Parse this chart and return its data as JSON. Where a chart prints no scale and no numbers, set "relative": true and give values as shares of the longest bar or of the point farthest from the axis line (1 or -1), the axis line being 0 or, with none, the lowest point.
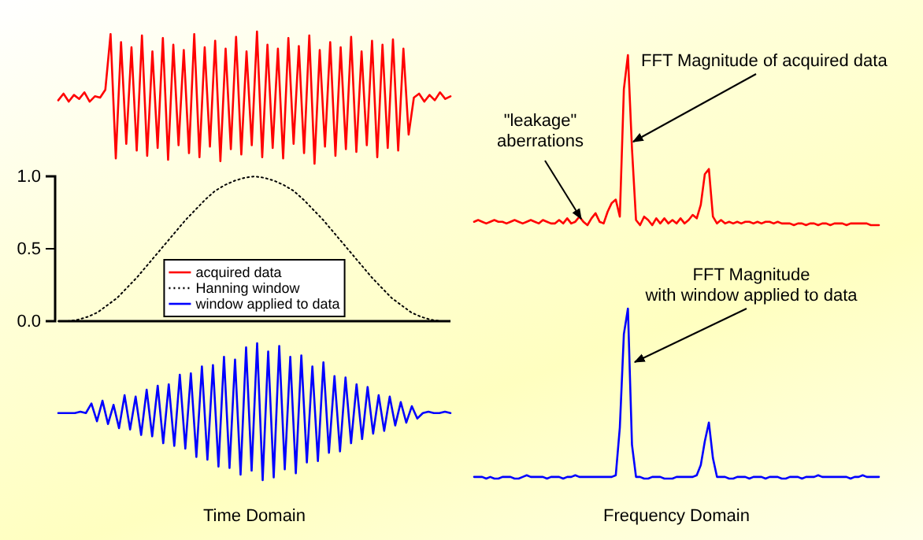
{
  "chart_data": [
    {
      "type": "line",
      "relative": true,
      "categories": [
        null,
        null,
        null,
        null,
        null,
        null,
        null,
        null,
        null,
        null,
        null,
        null,
        null,
        null,
        null,
        null,
        null,
        null,
        null,
        null,
        null,
        null,
        null,
        null,
        null,
        null,
        null,
        null,
        null,
        null,
        null,
        null,
        null,
        null,
        null,
        null,
        null,
        null,
        null,
        null,
        null,
        null,
        null,
        null,
        null,
        null,
        null,
        null,
        null,
        null,
        null,
        null,
        null,
        null,
        null,
        null,
        null,
        null,
        null,
        null,
        null,
        null,
        null,
        null,
        null,
        null,
        null,
        null,
        null,
        null,
        null,
        null,
        null,
        null,
        null,
        null
      ],
      "series": [
        {
          "name": "acquired data",
          "color": "#ff0000",
          "values": [
            0.48,
            0.53,
            0.47,
            0.52,
            0.49,
            0.54,
            0.47,
            0.51,
            0.5,
            0.56,
            0.98,
            0.04,
            0.92,
            0.15,
            0.88,
            0.1,
            0.97,
            0.06,
            0.85,
            0.12,
            0.95,
            0.03,
            0.9,
            0.14,
            0.86,
            0.08,
            0.98,
            0.05,
            0.88,
            0.13,
            0.93,
            0.02,
            0.87,
            0.11,
            0.96,
            0.07,
            0.85,
            0.14,
            1.0,
            0.05,
            0.9,
            0.12,
            0.87,
            0.04,
            0.95,
            0.15,
            0.89,
            0.08,
            0.97,
            0.0,
            0.86,
            0.13,
            0.92,
            0.06,
            0.88,
            0.11,
            0.96,
            0.09,
            0.85,
            0.14,
            0.93,
            0.05,
            0.9,
            0.12,
            0.94,
            0.1,
            0.87,
            0.22,
            0.5,
            0.53,
            0.47,
            0.52,
            0.48,
            0.54,
            0.49,
            0.51
          ]
        }
      ]
    },
    {
      "type": "line",
      "categories": [
        null,
        null,
        null,
        null,
        null,
        null,
        null,
        null,
        null,
        null,
        null,
        null,
        null,
        null,
        null,
        null,
        null,
        null,
        null,
        null,
        null,
        null,
        null,
        null,
        null,
        null,
        null,
        null,
        null,
        null,
        null,
        null,
        null,
        null,
        null,
        null,
        null,
        null,
        null,
        null,
        null
      ],
      "ylim": [
        0,
        1
      ],
      "yticks": [
        {
          "value": 0,
          "label": "0.0"
        },
        {
          "value": 0.5,
          "label": "0.5"
        },
        {
          "value": 1,
          "label": "1.0"
        }
      ],
      "tick_labels": "y",
      "line_style": "dotted",
      "legend": "bottom",
      "series": [
        {
          "name": "Hanning window",
          "color": "#000000",
          "values": [
            0,
            0,
            0.01,
            0.03,
            0.06,
            0.11,
            0.16,
            0.23,
            0.3,
            0.38,
            0.46,
            0.54,
            0.62,
            0.7,
            0.77,
            0.84,
            0.9,
            0.94,
            0.97,
            0.99,
            1.0,
            0.99,
            0.97,
            0.94,
            0.9,
            0.84,
            0.77,
            0.7,
            0.62,
            0.54,
            0.46,
            0.38,
            0.3,
            0.23,
            0.16,
            0.11,
            0.06,
            0.03,
            0.01,
            0,
            0
          ]
        }
      ]
    },
    {
      "type": "line",
      "relative": true,
      "xlabel": "Time Domain",
      "categories": [
        null,
        null,
        null,
        null,
        null,
        null,
        null,
        null,
        null,
        null,
        null,
        null,
        null,
        null,
        null,
        null,
        null,
        null,
        null,
        null,
        null,
        null,
        null,
        null,
        null,
        null,
        null,
        null,
        null,
        null,
        null,
        null,
        null,
        null,
        null,
        null,
        null,
        null,
        null,
        null,
        null,
        null,
        null,
        null,
        null,
        null,
        null,
        null,
        null,
        null,
        null,
        null,
        null,
        null,
        null,
        null,
        null,
        null,
        null,
        null,
        null,
        null,
        null,
        null,
        null,
        null,
        null,
        null,
        null,
        null,
        null,
        null
      ],
      "series": [
        {
          "name": "window applied to data",
          "color": "#0000ff",
          "values": [
            0.49,
            0.49,
            0.49,
            0.49,
            0.5,
            0.49,
            0.56,
            0.43,
            0.58,
            0.41,
            0.55,
            0.38,
            0.62,
            0.37,
            0.61,
            0.33,
            0.66,
            0.32,
            0.69,
            0.27,
            0.7,
            0.25,
            0.77,
            0.23,
            0.78,
            0.17,
            0.83,
            0.15,
            0.84,
            0.1,
            0.9,
            0.09,
            0.88,
            0.04,
            0.97,
            0.07,
            1.0,
            0.0,
            0.94,
            0.02,
            0.98,
            0.08,
            0.9,
            0.05,
            0.91,
            0.13,
            0.83,
            0.14,
            0.86,
            0.2,
            0.76,
            0.21,
            0.75,
            0.27,
            0.7,
            0.3,
            0.68,
            0.34,
            0.62,
            0.36,
            0.61,
            0.4,
            0.57,
            0.42,
            0.54,
            0.45,
            0.49,
            0.5,
            0.49,
            0.49,
            0.5,
            0.49
          ]
        }
      ]
    },
    {
      "type": "line",
      "relative": true,
      "annotations": [
        "FFT Magnitude of acquired data",
        "\"leakage\"\naberrations"
      ],
      "categories": [
        null,
        null,
        null,
        null,
        null,
        null,
        null,
        null,
        null,
        null,
        null,
        null,
        null,
        null,
        null,
        null,
        null,
        null,
        null,
        null,
        null,
        null,
        null,
        null,
        null,
        null,
        null,
        null,
        null,
        null,
        null,
        null,
        null,
        null,
        null,
        null,
        null,
        null,
        null,
        null,
        null,
        null,
        null,
        null,
        null,
        null,
        null,
        null,
        null,
        null,
        null,
        null,
        null,
        null,
        null,
        null,
        null,
        null,
        null,
        null,
        null,
        null,
        null,
        null,
        null,
        null,
        null,
        null,
        null,
        null,
        null,
        null,
        null,
        null,
        null,
        null,
        null,
        null,
        null,
        null,
        null,
        null,
        null,
        null,
        null,
        null,
        null,
        null,
        null,
        null,
        null,
        null,
        null,
        null,
        null,
        null,
        null,
        null,
        null,
        null,
        null
      ],
      "series": [
        {
          "color": "#ff0000",
          "values": [
            0.02,
            0.03,
            0.02,
            0.01,
            0.02,
            0.03,
            0.02,
            0.02,
            0.01,
            0.02,
            0.03,
            0.02,
            0.01,
            0.02,
            0.03,
            0.02,
            0.01,
            0.03,
            0.02,
            0.01,
            0.01,
            0.03,
            0.01,
            0.04,
            0.01,
            0.02,
            0.05,
            0.02,
            0.0,
            0.04,
            0.07,
            0.02,
            0.01,
            0.08,
            0.13,
            0.15,
            0.05,
            0.8,
            1.0,
            0.45,
            0.03,
            0.0,
            0.05,
            0.03,
            0.0,
            0.04,
            0.01,
            0.04,
            0.01,
            0.03,
            0.01,
            0.04,
            0.01,
            0.03,
            0.06,
            0.04,
            0.12,
            0.3,
            0.33,
            0.05,
            0.01,
            0.03,
            0.01,
            0.02,
            0.01,
            0.02,
            0.01,
            0.02,
            0.02,
            0.01,
            0.02,
            0.01,
            0.02,
            0.02,
            0.01,
            0.02,
            0.01,
            0.01,
            0.01,
            0.0,
            0.01,
            0.01,
            0.0,
            0.01,
            0.01,
            0.0,
            0.01,
            0.01,
            0.0,
            0.01,
            0.01,
            0.01,
            0.0,
            0.01,
            0.01,
            0.01,
            0.01,
            0.01,
            0.0,
            0.0,
            0.0
          ]
        }
      ]
    },
    {
      "type": "line",
      "relative": true,
      "xlabel": "Frequency Domain",
      "annotations": [
        "FFT Magnitude\nwith window applied to data"
      ],
      "categories": [
        null,
        null,
        null,
        null,
        null,
        null,
        null,
        null,
        null,
        null,
        null,
        null,
        null,
        null,
        null,
        null,
        null,
        null,
        null,
        null,
        null,
        null,
        null,
        null,
        null,
        null,
        null,
        null,
        null,
        null,
        null,
        null,
        null,
        null,
        null,
        null,
        null,
        null,
        null,
        null,
        null,
        null,
        null,
        null,
        null,
        null,
        null,
        null,
        null,
        null,
        null,
        null,
        null,
        null,
        null,
        null,
        null,
        null,
        null,
        null,
        null,
        null,
        null,
        null,
        null,
        null,
        null,
        null,
        null,
        null,
        null,
        null,
        null,
        null,
        null,
        null,
        null,
        null,
        null,
        null,
        null,
        null,
        null,
        null,
        null,
        null,
        null,
        null,
        null,
        null,
        null,
        null,
        null,
        null,
        null,
        null,
        null,
        null,
        null,
        null,
        null
      ],
      "series": [
        {
          "color": "#0000ff",
          "values": [
            0.01,
            0.01,
            0.01,
            0.0,
            0.01,
            0.0,
            0.0,
            0.01,
            0.01,
            0.01,
            0.0,
            0.0,
            0.01,
            0.02,
            0.01,
            0.01,
            0.01,
            0.01,
            0.0,
            0.01,
            0.01,
            0.01,
            0.0,
            0.01,
            0.01,
            0.02,
            0.01,
            0.01,
            0.01,
            0.01,
            0.01,
            0.01,
            0.01,
            0.01,
            0.01,
            0.02,
            0.3,
            0.85,
            1.0,
            0.2,
            0.01,
            0.01,
            0.0,
            0.0,
            0.01,
            0.01,
            0.01,
            0.0,
            0.0,
            0.0,
            0.01,
            0.01,
            0.01,
            0.01,
            0.01,
            0.02,
            0.08,
            0.22,
            0.33,
            0.12,
            0.01,
            0.01,
            0.01,
            0.0,
            0.0,
            0.01,
            0.01,
            0.01,
            0.0,
            0.01,
            0.01,
            0.01,
            0.0,
            0.01,
            0.01,
            0.01,
            0.0,
            0.0,
            0.01,
            0.01,
            0.01,
            0.0,
            0.01,
            0.01,
            0.01,
            0.02,
            0.01,
            0.01,
            0.01,
            0.01,
            0.01,
            0.01,
            0.01,
            0.0,
            0.01,
            0.01,
            0.02,
            0.01,
            0.01,
            0.01,
            0.01
          ]
        }
      ]
    }
  ]
}
